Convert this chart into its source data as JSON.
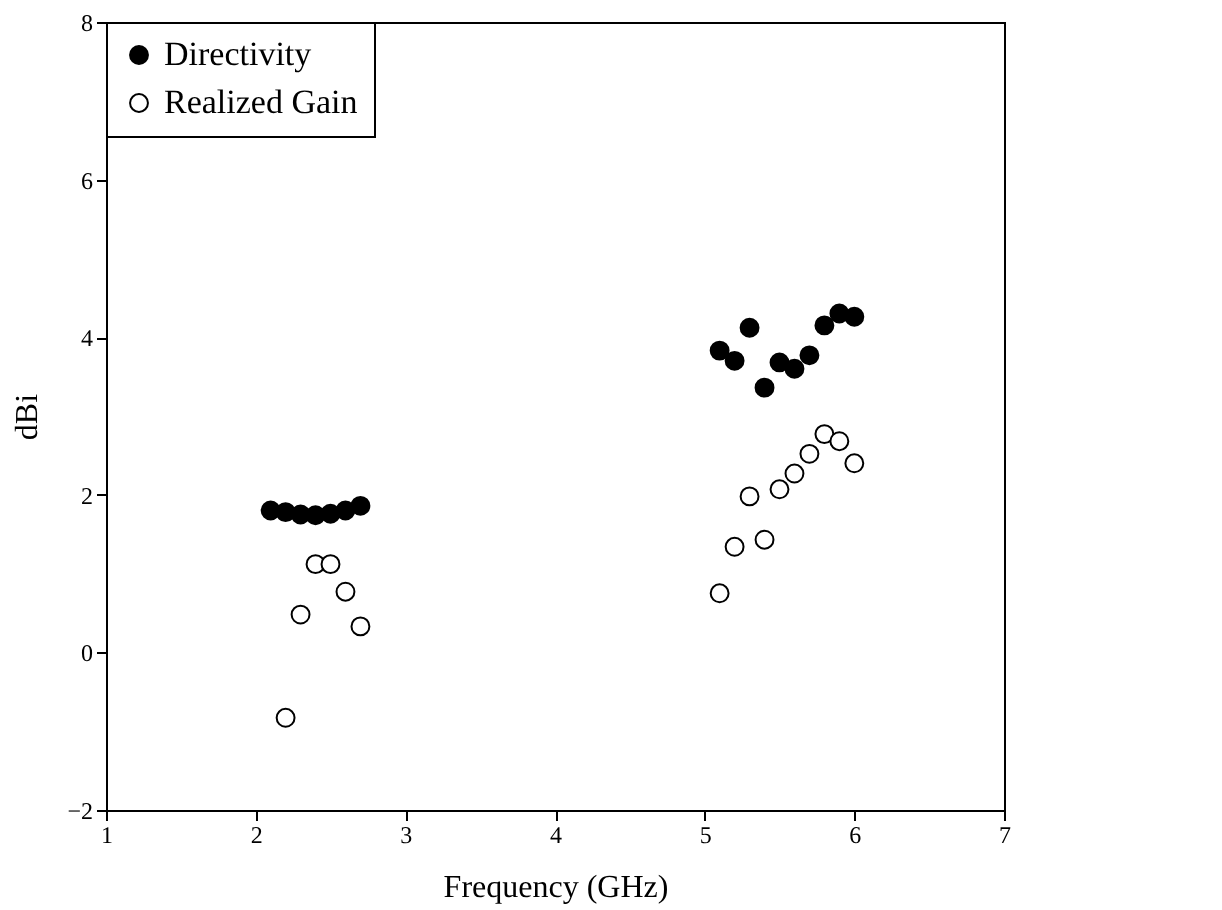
{
  "chart_data": {
    "type": "scatter",
    "xlabel": "Frequency (GHz)",
    "ylabel": "dBi",
    "x": [
      2.1,
      2.2,
      2.3,
      2.4,
      2.5,
      2.6,
      2.7,
      5.1,
      5.2,
      5.3,
      5.4,
      5.5,
      5.6,
      5.7,
      5.8,
      5.9,
      6.0
    ],
    "series": [
      {
        "name": "Directivity",
        "color": "#000000",
        "values": [
          1.8,
          1.78,
          1.75,
          1.74,
          1.76,
          1.8,
          1.86,
          3.83,
          3.7,
          4.12,
          3.36,
          3.68,
          3.6,
          3.77,
          4.15,
          4.3,
          4.26
        ]
      },
      {
        "name": "Realized Gain",
        "color": "#ffffff",
        "values": [
          null,
          -0.83,
          0.48,
          1.12,
          1.12,
          0.77,
          0.33,
          0.75,
          1.34,
          1.98,
          1.43,
          2.07,
          2.27,
          2.52,
          2.77,
          2.68,
          2.4
        ]
      }
    ],
    "xlim": [
      1,
      7
    ],
    "xticks": [
      1,
      2,
      3,
      4,
      5,
      6,
      7
    ],
    "ylim": [
      -2,
      8
    ],
    "yticks": [
      -2,
      0,
      2,
      4,
      6,
      8
    ],
    "grid": false,
    "legend": "top left",
    "marker": "circle"
  }
}
